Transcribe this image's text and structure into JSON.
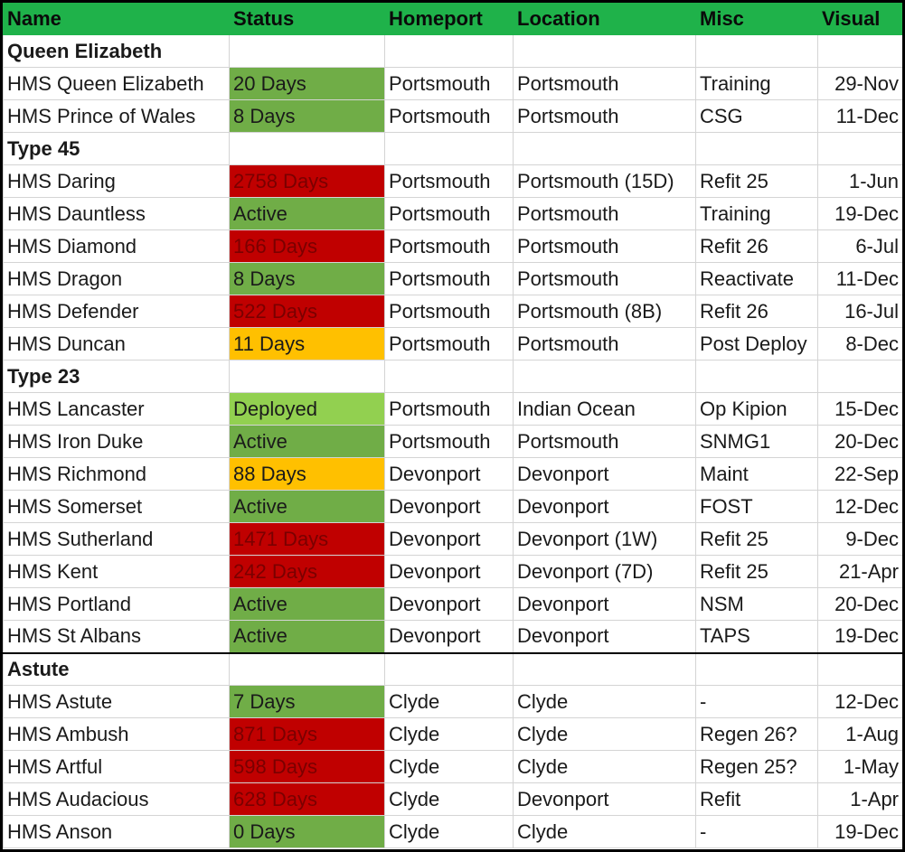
{
  "columns": [
    "Name",
    "Status",
    "Homeport",
    "Location",
    "Misc",
    "Visual"
  ],
  "colors": {
    "header": "#1fb24a",
    "green": "#70ad47",
    "red": "#c00000",
    "amber": "#ffc000",
    "light_green": "#92d050"
  },
  "rows": [
    {
      "group": "Queen Elizabeth"
    },
    {
      "name": "HMS Queen Elizabeth",
      "status": "20 Days",
      "status_color": "green",
      "homeport": "Portsmouth",
      "location": "Portsmouth",
      "misc": "Training",
      "visual": "29-Nov"
    },
    {
      "name": "HMS Prince of Wales",
      "status": "8 Days",
      "status_color": "green",
      "homeport": "Portsmouth",
      "location": "Portsmouth",
      "misc": "CSG",
      "visual": "11-Dec"
    },
    {
      "group": "Type 45"
    },
    {
      "name": "HMS Daring",
      "status": "2758 Days",
      "status_color": "red",
      "homeport": "Portsmouth",
      "location": "Portsmouth (15D)",
      "misc": "Refit 25",
      "visual": "1-Jun"
    },
    {
      "name": "HMS Dauntless",
      "status": "Active",
      "status_color": "green",
      "homeport": "Portsmouth",
      "location": "Portsmouth",
      "misc": "Training",
      "visual": "19-Dec"
    },
    {
      "name": "HMS Diamond",
      "status": "166 Days",
      "status_color": "red",
      "homeport": "Portsmouth",
      "location": "Portsmouth",
      "misc": "Refit 26",
      "visual": "6-Jul"
    },
    {
      "name": "HMS Dragon",
      "status": "8 Days",
      "status_color": "green",
      "homeport": "Portsmouth",
      "location": "Portsmouth",
      "misc": "Reactivate",
      "visual": "11-Dec"
    },
    {
      "name": "HMS Defender",
      "status": "522 Days",
      "status_color": "red",
      "homeport": "Portsmouth",
      "location": "Portsmouth (8B)",
      "misc": "Refit 26",
      "visual": "16-Jul"
    },
    {
      "name": "HMS Duncan",
      "status": "11 Days",
      "status_color": "amber",
      "homeport": "Portsmouth",
      "location": "Portsmouth",
      "misc": "Post Deploy",
      "visual": "8-Dec"
    },
    {
      "group": "Type 23"
    },
    {
      "name": "HMS Lancaster",
      "status": "Deployed",
      "status_color": "light_green",
      "homeport": "Portsmouth",
      "location": "Indian Ocean",
      "misc": "Op Kipion",
      "visual": "15-Dec"
    },
    {
      "name": "HMS Iron Duke",
      "status": "Active",
      "status_color": "green",
      "homeport": "Portsmouth",
      "location": "Portsmouth",
      "misc": "SNMG1",
      "visual": "20-Dec"
    },
    {
      "name": "HMS Richmond",
      "status": "88 Days",
      "status_color": "amber",
      "homeport": "Devonport",
      "location": "Devonport",
      "misc": "Maint",
      "visual": "22-Sep"
    },
    {
      "name": "HMS Somerset",
      "status": "Active",
      "status_color": "green",
      "homeport": "Devonport",
      "location": "Devonport",
      "misc": "FOST",
      "visual": "12-Dec"
    },
    {
      "name": "HMS Sutherland",
      "status": "1471 Days",
      "status_color": "red",
      "homeport": "Devonport",
      "location": "Devonport (1W)",
      "misc": "Refit 25",
      "visual": "9-Dec"
    },
    {
      "name": "HMS Kent",
      "status": "242 Days",
      "status_color": "red",
      "homeport": "Devonport",
      "location": "Devonport (7D)",
      "misc": "Refit 25",
      "visual": "21-Apr"
    },
    {
      "name": "HMS Portland",
      "status": "Active",
      "status_color": "green",
      "homeport": "Devonport",
      "location": "Devonport",
      "misc": "NSM",
      "visual": "20-Dec"
    },
    {
      "name": "HMS St Albans",
      "status": "Active",
      "status_color": "green",
      "homeport": "Devonport",
      "location": "Devonport",
      "misc": "TAPS",
      "visual": "19-Dec"
    },
    {
      "group": "Astute",
      "section_break": true
    },
    {
      "name": "HMS Astute",
      "status": "7 Days",
      "status_color": "green",
      "homeport": "Clyde",
      "location": "Clyde",
      "misc": "-",
      "visual": "12-Dec"
    },
    {
      "name": "HMS Ambush",
      "status": "871 Days",
      "status_color": "red",
      "homeport": "Clyde",
      "location": "Clyde",
      "misc": "Regen 26?",
      "visual": "1-Aug"
    },
    {
      "name": "HMS Artful",
      "status": "598 Days",
      "status_color": "red",
      "homeport": "Clyde",
      "location": "Clyde",
      "misc": "Regen 25?",
      "visual": "1-May"
    },
    {
      "name": "HMS Audacious",
      "status": "628 Days",
      "status_color": "red",
      "homeport": "Clyde",
      "location": "Devonport",
      "misc": "Refit",
      "visual": "1-Apr"
    },
    {
      "name": "HMS Anson",
      "status": "0 Days",
      "status_color": "green",
      "homeport": "Clyde",
      "location": "Clyde",
      "misc": "-",
      "visual": "19-Dec"
    }
  ]
}
